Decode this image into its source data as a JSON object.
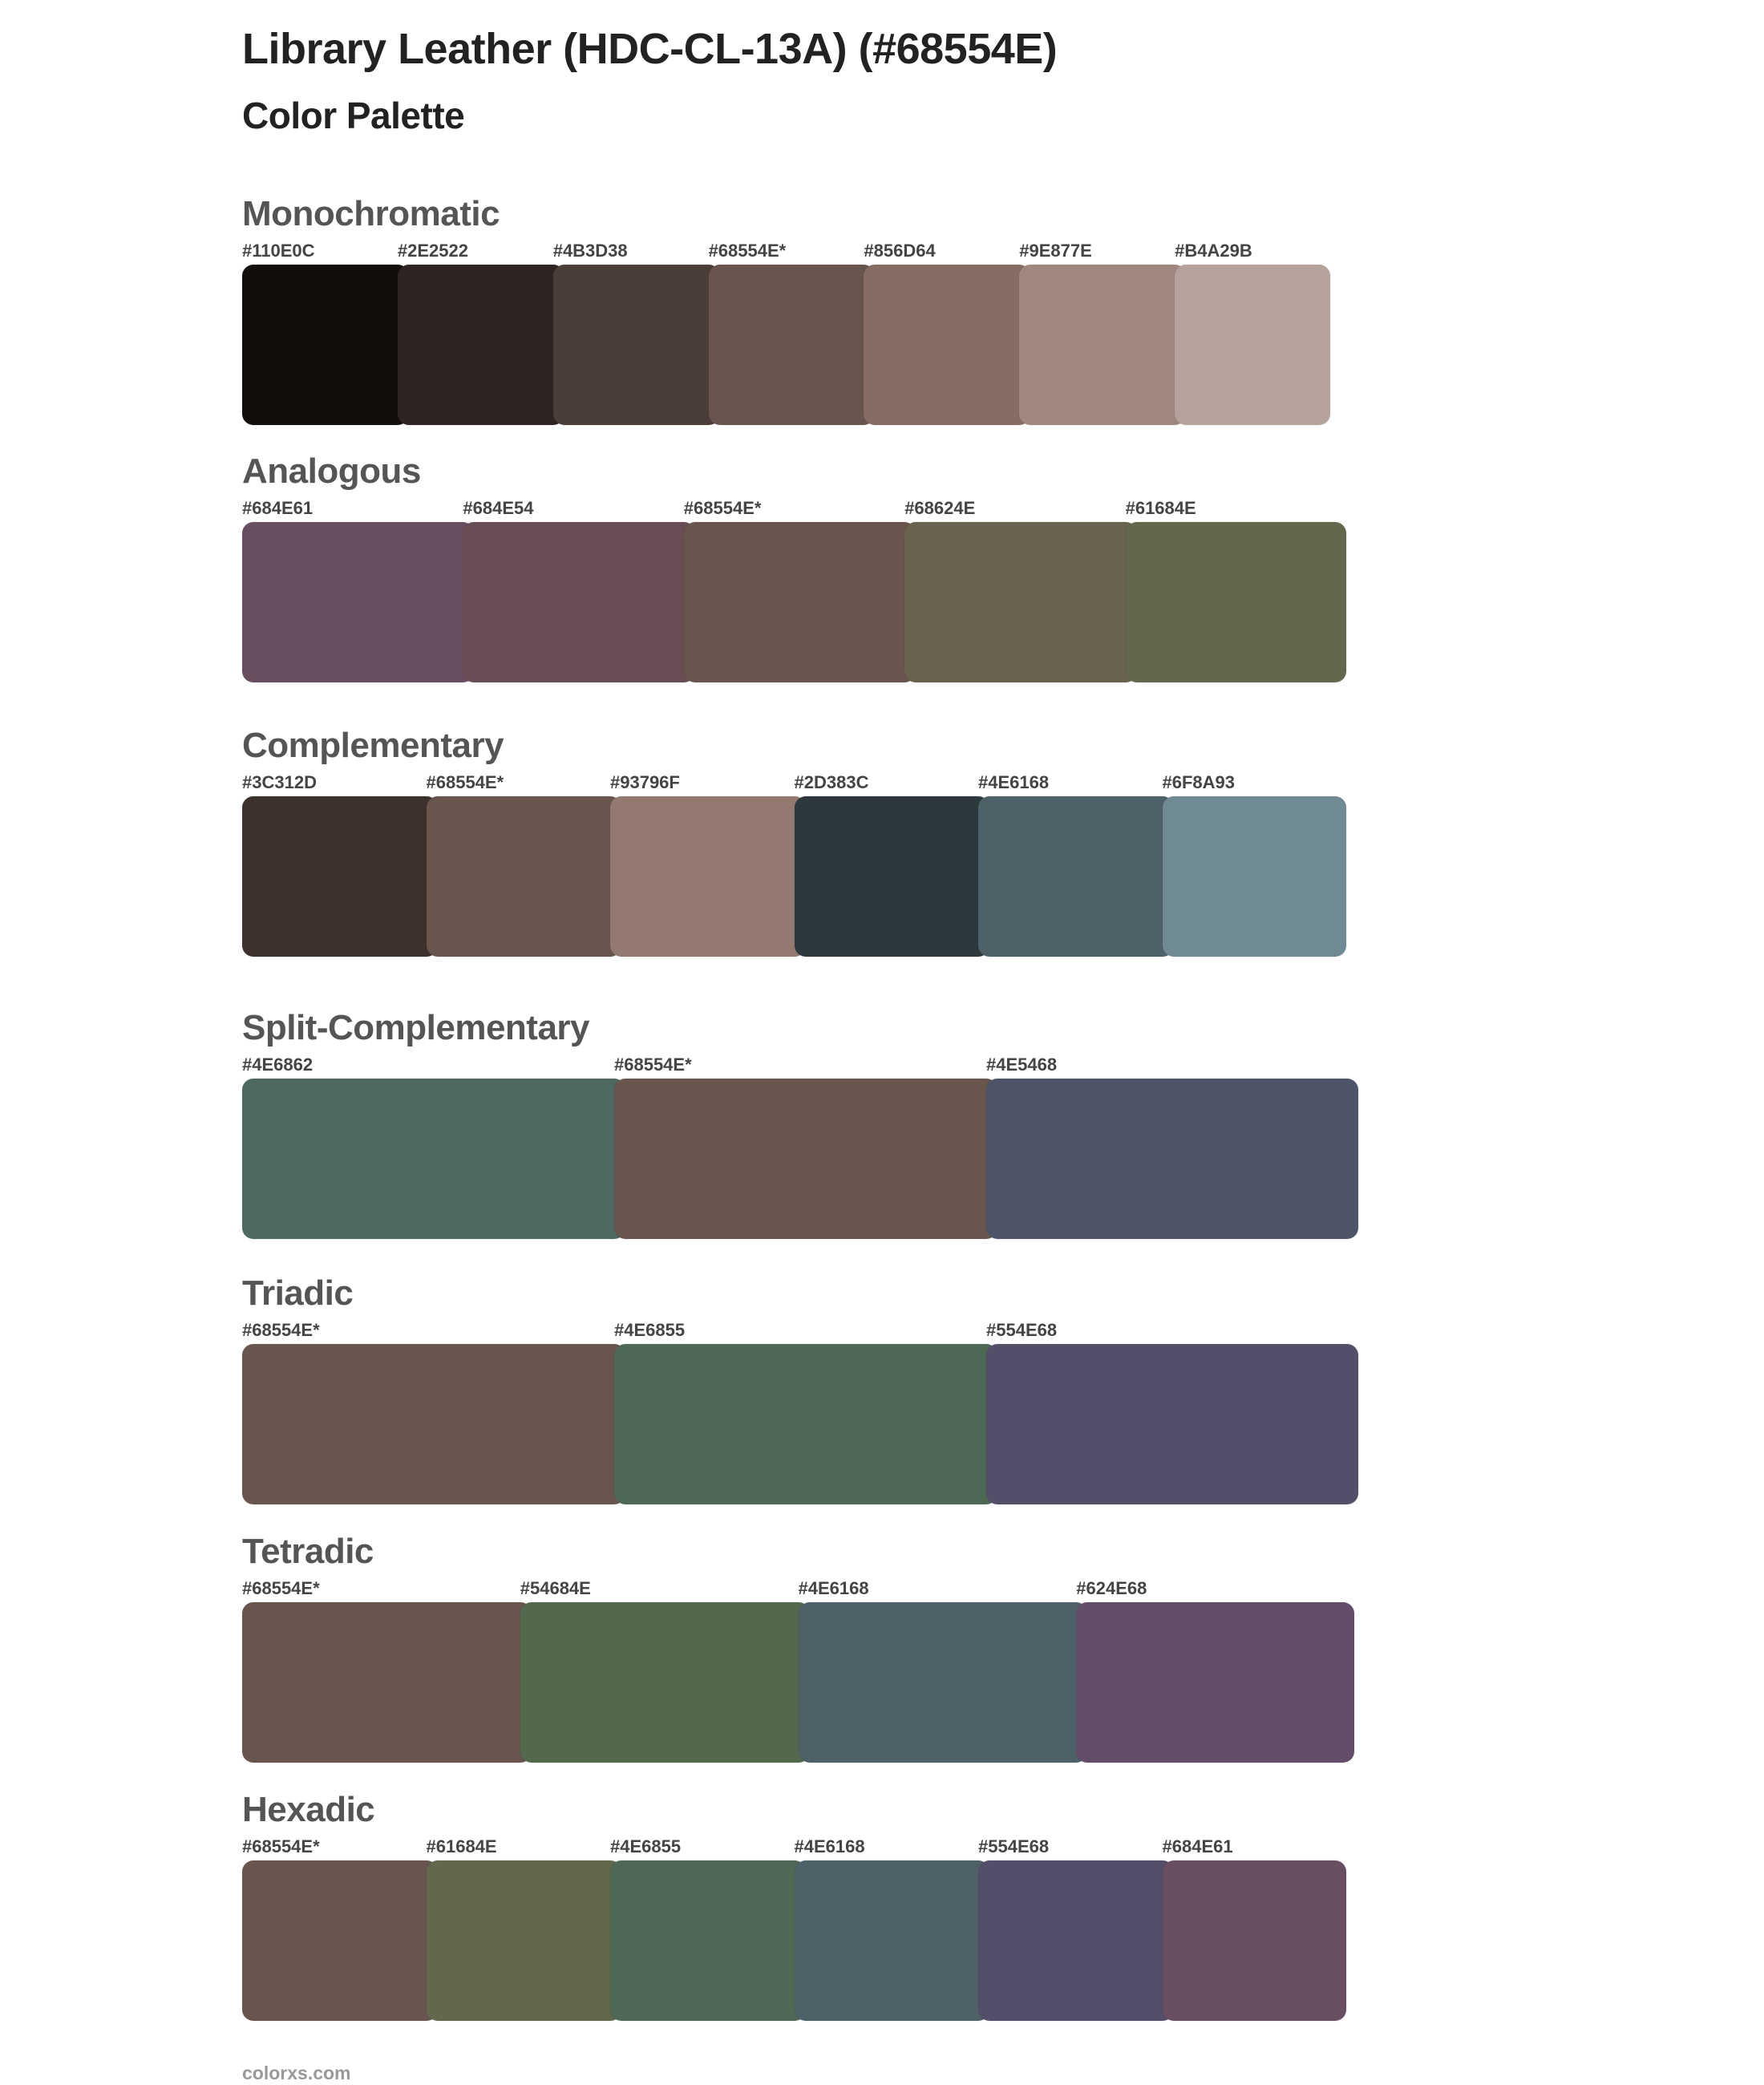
{
  "header": {
    "title": "Library Leather (HDC-CL-13A) (#68554E)",
    "subtitle": "Color Palette"
  },
  "sections": [
    {
      "name": "Monochromatic",
      "swatches": [
        {
          "label": "#110E0C",
          "color": "#110E0C"
        },
        {
          "label": "#2E2522",
          "color": "#2E2522"
        },
        {
          "label": "#4B3D38",
          "color": "#4B3D38"
        },
        {
          "label": "#68554E*",
          "color": "#68554E"
        },
        {
          "label": "#856D64",
          "color": "#856D64"
        },
        {
          "label": "#9E877E",
          "color": "#9E877E"
        },
        {
          "label": "#B4A29B",
          "color": "#B4A29B"
        }
      ]
    },
    {
      "name": "Analogous",
      "swatches": [
        {
          "label": "#684E61",
          "color": "#684E61"
        },
        {
          "label": "#684E54",
          "color": "#684E54"
        },
        {
          "label": "#68554E*",
          "color": "#68554E"
        },
        {
          "label": "#68624E",
          "color": "#68624E"
        },
        {
          "label": "#61684E",
          "color": "#61684E"
        }
      ]
    },
    {
      "name": "Complementary",
      "swatches": [
        {
          "label": "#3C312D",
          "color": "#3C312D"
        },
        {
          "label": "#68554E*",
          "color": "#68554E"
        },
        {
          "label": "#93796F",
          "color": "#93796F"
        },
        {
          "label": "#2D383C",
          "color": "#2D383C"
        },
        {
          "label": "#4E6168",
          "color": "#4E6168"
        },
        {
          "label": "#6F8A93",
          "color": "#6F8A93"
        }
      ]
    },
    {
      "name": "Split-Complementary",
      "swatches": [
        {
          "label": "#4E6862",
          "color": "#4E6862"
        },
        {
          "label": "#68554E*",
          "color": "#68554E"
        },
        {
          "label": "#4E5468",
          "color": "#4E5468"
        }
      ]
    },
    {
      "name": "Triadic",
      "swatches": [
        {
          "label": "#68554E*",
          "color": "#68554E"
        },
        {
          "label": "#4E6855",
          "color": "#4E6855"
        },
        {
          "label": "#554E68",
          "color": "#554E68"
        }
      ]
    },
    {
      "name": "Tetradic",
      "swatches": [
        {
          "label": "#68554E*",
          "color": "#68554E"
        },
        {
          "label": "#54684E",
          "color": "#54684E"
        },
        {
          "label": "#4E6168",
          "color": "#4E6168"
        },
        {
          "label": "#624E68",
          "color": "#624E68"
        }
      ]
    },
    {
      "name": "Hexadic",
      "swatches": [
        {
          "label": "#68554E*",
          "color": "#68554E"
        },
        {
          "label": "#61684E",
          "color": "#61684E"
        },
        {
          "label": "#4E6855",
          "color": "#4E6855"
        },
        {
          "label": "#4E6168",
          "color": "#4E6168"
        },
        {
          "label": "#554E68",
          "color": "#554E68"
        },
        {
          "label": "#684E61",
          "color": "#684E61"
        }
      ]
    }
  ],
  "footer": {
    "text": "colorxs.com"
  }
}
